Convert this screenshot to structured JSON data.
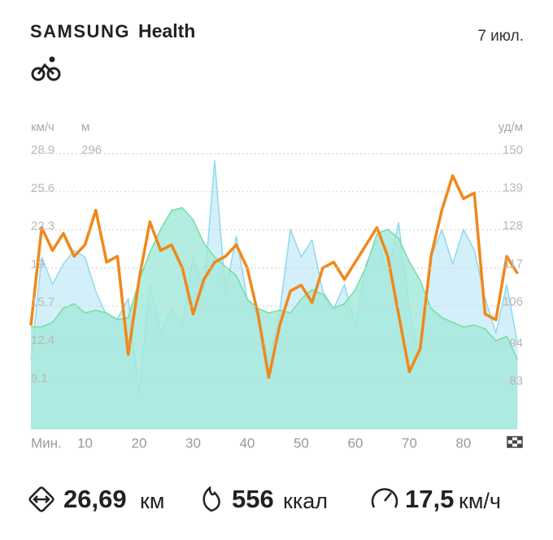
{
  "header": {
    "brand": "SAMSUNG",
    "app": "Health",
    "date": "7 июл."
  },
  "chart_data": {
    "type": "line",
    "x_label": "Мин.",
    "y_unit": "км/ч",
    "y3_unit": "м",
    "y2_unit": "уд/м",
    "x": [
      0,
      2,
      4,
      6,
      8,
      10,
      12,
      14,
      16,
      18,
      20,
      22,
      24,
      26,
      28,
      30,
      32,
      34,
      36,
      38,
      40,
      42,
      44,
      46,
      48,
      50,
      52,
      54,
      56,
      58,
      60,
      62,
      64,
      66,
      68,
      70,
      72,
      74,
      76,
      78,
      80,
      82,
      84,
      86,
      88,
      90
    ],
    "xlim": [
      0,
      91
    ],
    "xticks": [
      10,
      20,
      30,
      40,
      50,
      60,
      70,
      80
    ],
    "ylim": [
      5,
      28.9
    ],
    "yticks": [
      9.1,
      12.4,
      15.7,
      19.0,
      22.3,
      25.6,
      28.9
    ],
    "y2lim": [
      70,
      150
    ],
    "y2ticks": [
      83,
      94,
      106,
      117,
      128,
      139,
      150
    ],
    "y3lim": [
      0,
      296
    ],
    "y3ticks": [
      296
    ],
    "grid": true,
    "series": [
      {
        "color": "#8fd8ee",
        "fill": "#d3f0fa",
        "axis": "y2",
        "values": [
          90,
          120,
          112,
          118,
          122,
          120,
          110,
          103,
          102,
          108,
          80,
          112,
          98,
          105,
          100,
          120,
          110,
          148,
          110,
          126,
          108,
          103,
          90,
          104,
          128,
          120,
          125,
          110,
          105,
          112,
          100,
          118,
          125,
          115,
          130,
          105,
          90,
          120,
          128,
          118,
          128,
          122,
          108,
          98,
          112,
          95
        ]
      },
      {
        "color": "#74df9f",
        "fill": "#a6e9dc",
        "axis": "y3",
        "values": [
          110,
          110,
          115,
          130,
          135,
          125,
          128,
          125,
          118,
          120,
          160,
          190,
          215,
          235,
          238,
          225,
          200,
          185,
          175,
          165,
          140,
          130,
          125,
          128,
          125,
          140,
          150,
          145,
          130,
          135,
          150,
          175,
          210,
          215,
          205,
          180,
          160,
          130,
          120,
          115,
          110,
          112,
          108,
          95,
          100,
          75
        ]
      },
      {
        "color": "#f0881a",
        "axis": "y",
        "values": [
          14.0,
          22.5,
          20.5,
          22.0,
          20.0,
          21.0,
          24.0,
          19.5,
          20.0,
          11.5,
          18.0,
          23.0,
          20.5,
          21.0,
          19.0,
          15.0,
          18.0,
          19.5,
          20.0,
          21.0,
          19.0,
          15.0,
          9.5,
          14.0,
          17.0,
          17.5,
          16.0,
          19.0,
          19.5,
          18.0,
          19.5,
          21.0,
          22.5,
          20.0,
          15.0,
          10.0,
          12.0,
          20.0,
          24.0,
          27.0,
          25.0,
          25.5,
          15.0,
          14.5,
          20.0,
          18.5
        ]
      }
    ]
  },
  "summary": [
    {
      "value": "26,69",
      "unit": "км"
    },
    {
      "value": "556",
      "unit": "ккал"
    },
    {
      "value": "17,5",
      "unit": "км/ч"
    }
  ]
}
